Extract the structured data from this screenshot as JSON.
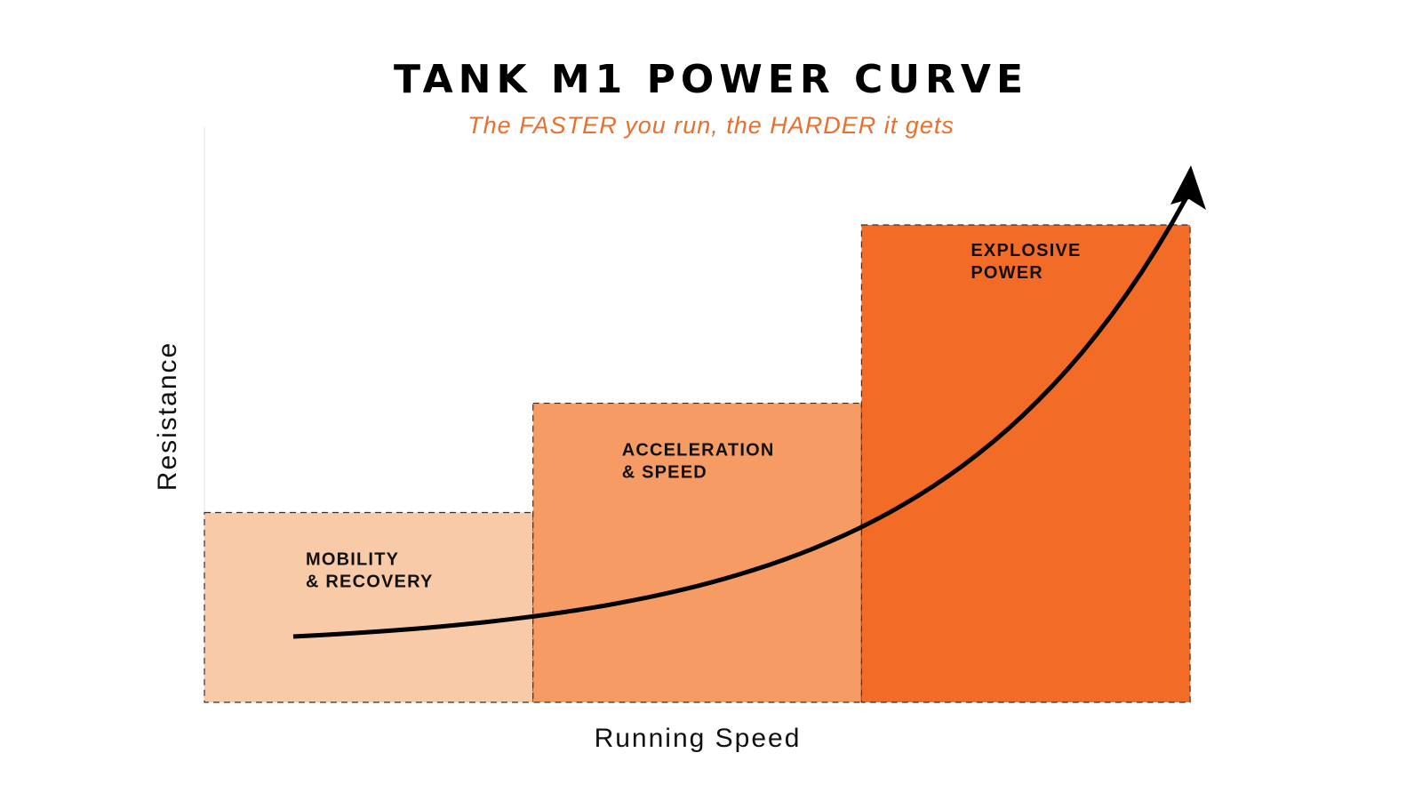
{
  "chart_data": {
    "type": "bar",
    "title": "TANK M1 POWER CURVE",
    "subtitle": "The FASTER you run, the HARDER it gets",
    "xlabel": "Running Speed",
    "ylabel": "Resistance",
    "ylim": [
      0,
      100
    ],
    "grid": false,
    "categories": [
      {
        "line1": "MOBILITY",
        "line2": "& RECOVERY"
      },
      {
        "line1": "ACCELERATION",
        "line2": "& SPEED"
      },
      {
        "line1": "EXPLOSIVE",
        "line2": "POWER"
      }
    ],
    "values": [
      33,
      52,
      83
    ],
    "colors": [
      "#f9caa7",
      "#f69b64",
      "#f26c27"
    ],
    "curve": {
      "description_points_x": [
        0.27,
        1.0,
        2.0,
        3.0
      ],
      "values": [
        11,
        16,
        31,
        93
      ]
    }
  }
}
